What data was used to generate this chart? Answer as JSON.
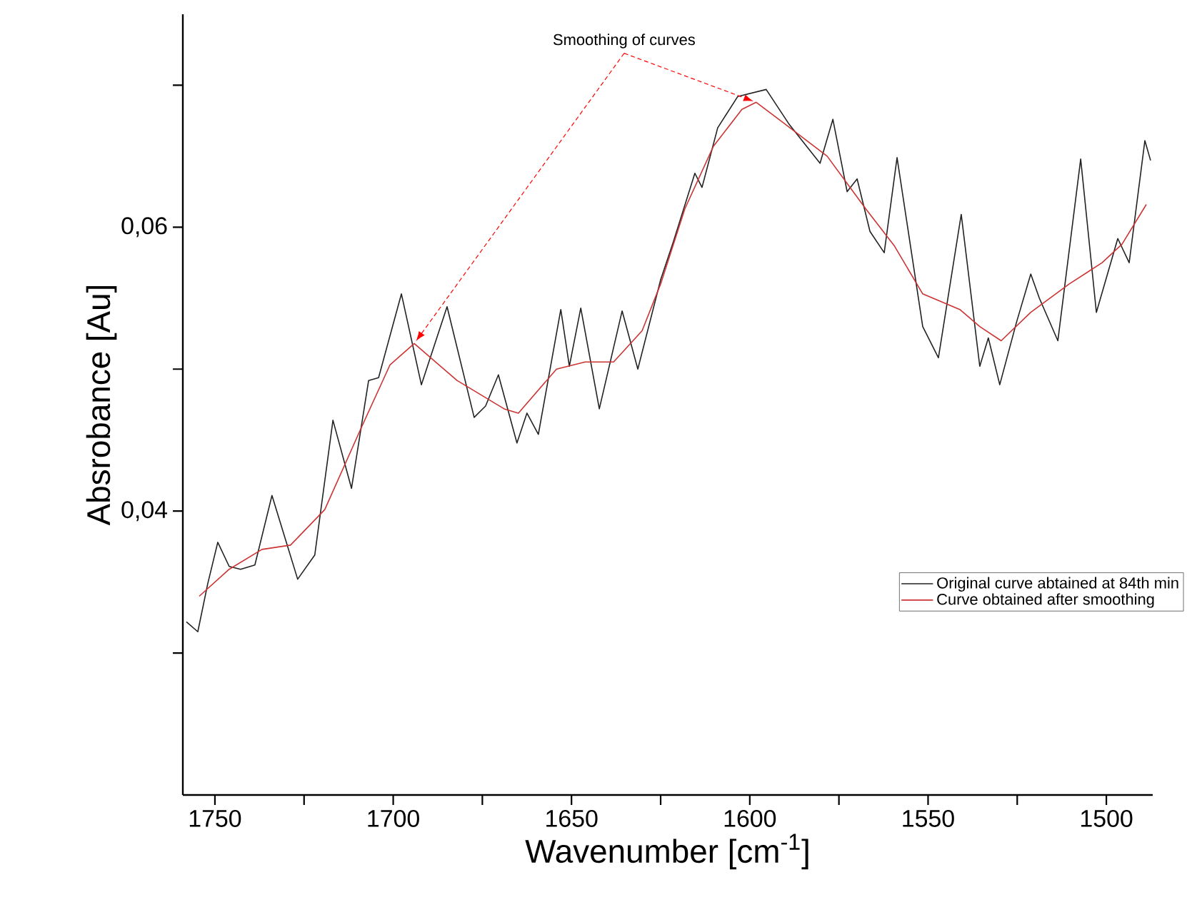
{
  "chart_data": {
    "type": "line",
    "xlabel": "Wavenumber [cm$^{-1}$]",
    "ylabel": "Absrobance [Au]",
    "annotations": [
      {
        "text": "Smoothing of curves",
        "x": 1694.1,
        "y": 0.0518
      }
    ],
    "xlim": [
      1759,
      1487
    ],
    "ylim": [
      0.02,
      0.075
    ],
    "xticks": [
      1750,
      {
        "value": 1725,
        "label": null
      },
      1700,
      {
        "value": 1675,
        "label": null
      },
      1650,
      {
        "value": 1625,
        "label": null
      },
      1600,
      {
        "value": 1575,
        "label": null
      },
      1550,
      {
        "value": 1525,
        "label": null
      },
      1500
    ],
    "yticks": [
      {
        "value": 0.03,
        "label": null
      },
      {
        "value": 0.04,
        "label": "0,04"
      },
      {
        "value": 0.05,
        "label": null
      },
      {
        "value": 0.06,
        "label": "0,06"
      },
      {
        "value": 0.07,
        "label": null
      }
    ],
    "legend": "right",
    "marker": "none",
    "line_style": "solid",
    "grid": false,
    "series": [
      {
        "name": "Original curve abtained at 84th min",
        "color": "#222222",
        "x": [
          1758,
          1754.8,
          1752,
          1749.2,
          1746,
          1742.8,
          1738.8,
          1734,
          1726.8,
          1722,
          1716.9,
          1711.7,
          1706.9,
          1704.1,
          1697.7,
          1692.1,
          1684.9,
          1677.3,
          1674.1,
          1670.5,
          1665.3,
          1662.5,
          1659.3,
          1653,
          1650.6,
          1647.4,
          1642.2,
          1635.8,
          1631.4,
          1625,
          1621.4,
          1615.4,
          1613.4,
          1609,
          1603.4,
          1595.4,
          1589.1,
          1580.3,
          1576.7,
          1572.7,
          1569.9,
          1566.3,
          1562.3,
          1558.7,
          1551.5,
          1547.1,
          1540.7,
          1535.5,
          1533.1,
          1529.9,
          1525.2,
          1521.2,
          1518.8,
          1513.6,
          1507.2,
          1502.8,
          1496.8,
          1493.6,
          1489.2,
          1487.6
        ],
        "values": [
          0.0322,
          0.0315,
          0.0349,
          0.0378,
          0.0361,
          0.0359,
          0.0362,
          0.0411,
          0.0352,
          0.0369,
          0.0464,
          0.0416,
          0.0492,
          0.0494,
          0.0553,
          0.0489,
          0.0544,
          0.0466,
          0.0474,
          0.0496,
          0.0448,
          0.0469,
          0.0454,
          0.0542,
          0.0502,
          0.0543,
          0.0472,
          0.0541,
          0.05,
          0.0563,
          0.059,
          0.0638,
          0.0628,
          0.067,
          0.0692,
          0.0697,
          0.0673,
          0.0645,
          0.0676,
          0.0625,
          0.0634,
          0.0597,
          0.0582,
          0.0649,
          0.053,
          0.0508,
          0.0609,
          0.0502,
          0.0522,
          0.0489,
          0.0533,
          0.0567,
          0.055,
          0.052,
          0.0648,
          0.054,
          0.0592,
          0.0575,
          0.0661,
          0.0647
        ]
      },
      {
        "name": "Curve obtained after smoothing",
        "color": "#cc3333",
        "x": [
          1754.4,
          1746,
          1736.8,
          1728.8,
          1719.2,
          1708.9,
          1700.9,
          1694.1,
          1682.1,
          1668.9,
          1664.9,
          1654.2,
          1646.2,
          1638.2,
          1630.2,
          1625,
          1618.2,
          1610.2,
          1602.2,
          1598.2,
          1590.3,
          1578.3,
          1567.5,
          1559.5,
          1551.5,
          1541.1,
          1535.5,
          1529.5,
          1521.2,
          1510.4,
          1501.2,
          1495.6,
          1488.8
        ],
        "values": [
          0.034,
          0.0359,
          0.0373,
          0.0376,
          0.0401,
          0.0459,
          0.0503,
          0.0518,
          0.0492,
          0.0472,
          0.0469,
          0.05,
          0.0505,
          0.0505,
          0.0527,
          0.056,
          0.0613,
          0.0657,
          0.0683,
          0.0688,
          0.0673,
          0.065,
          0.0613,
          0.0587,
          0.0553,
          0.0542,
          0.053,
          0.052,
          0.054,
          0.056,
          0.0575,
          0.0588,
          0.0616
        ]
      }
    ]
  }
}
